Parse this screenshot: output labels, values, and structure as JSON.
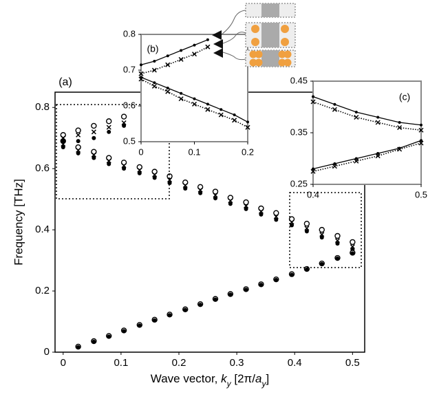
{
  "chart_data": [
    {
      "type": "scatter",
      "panel_label": "(a)",
      "ylabel": "Frequency [THz]",
      "xlabel_parts": [
        "Wave vector, ",
        "k",
        "y",
        "  [2π/",
        "a",
        "y",
        "]"
      ],
      "xlim": [
        -0.014,
        0.521
      ],
      "ylim": [
        0,
        0.85
      ],
      "xticks": [
        0,
        0.1,
        0.2,
        0.3,
        0.4,
        0.5
      ],
      "yticks": [
        0,
        0.2,
        0.4,
        0.6,
        0.8
      ],
      "x": [
        0,
        0.026,
        0.053,
        0.079,
        0.105,
        0.132,
        0.158,
        0.184,
        0.211,
        0.237,
        0.263,
        0.289,
        0.316,
        0.342,
        0.368,
        0.395,
        0.421,
        0.447,
        0.474,
        0.5
      ],
      "series": [
        {
          "marker": "open-circle",
          "color": "#000000",
          "values": [
            0.69,
            0.67,
            0.655,
            0.635,
            0.62,
            0.605,
            0.59,
            0.575,
            0.555,
            0.54,
            0.525,
            0.505,
            0.49,
            0.47,
            0.455,
            0.435,
            0.42,
            0.4,
            0.38,
            0.36
          ]
        },
        {
          "marker": "cross",
          "color": "#000000",
          "values": [
            0.68,
            0.66,
            0.645,
            0.625,
            0.61,
            0.595,
            0.58,
            0.563,
            0.545,
            0.53,
            0.513,
            0.495,
            0.478,
            0.46,
            0.443,
            0.425,
            0.405,
            0.385,
            0.365,
            0.345
          ]
        },
        {
          "marker": "dot",
          "color": "#000000",
          "values": [
            0.67,
            0.65,
            0.635,
            0.615,
            0.6,
            0.585,
            0.57,
            0.553,
            0.535,
            0.52,
            0.503,
            0.485,
            0.468,
            0.45,
            0.433,
            0.415,
            0.395,
            0.375,
            0.355,
            0.335
          ]
        },
        {
          "marker": "open-circle",
          "color": "#000000",
          "values": [
            0.71,
            0.725,
            0.74,
            0.755,
            0.77,
            null,
            null,
            null,
            null,
            null,
            null,
            null,
            null,
            null,
            null,
            null,
            null,
            null,
            null,
            null
          ]
        },
        {
          "marker": "cross",
          "color": "#000000",
          "values": [
            0.7,
            0.71,
            0.72,
            0.735,
            0.75,
            null,
            null,
            null,
            null,
            null,
            null,
            null,
            null,
            null,
            null,
            null,
            null,
            null,
            null,
            null
          ]
        },
        {
          "marker": "dot",
          "color": "#000000",
          "values": [
            0.69,
            0.69,
            0.7,
            0.72,
            0.74,
            null,
            null,
            null,
            null,
            null,
            null,
            null,
            null,
            null,
            null,
            null,
            null,
            null,
            null,
            null
          ]
        },
        {
          "marker": "open-circle",
          "color": "#000000",
          "values": [
            null,
            0.018,
            0.036,
            0.053,
            0.071,
            0.089,
            0.106,
            0.123,
            0.14,
            0.157,
            0.174,
            0.19,
            0.206,
            0.222,
            0.238,
            0.255,
            0.272,
            0.29,
            0.308,
            0.325
          ]
        },
        {
          "marker": "dot",
          "color": "#000000",
          "values": [
            null,
            0.016,
            0.034,
            0.051,
            0.069,
            0.087,
            0.104,
            0.121,
            0.138,
            0.155,
            0.172,
            0.188,
            0.204,
            0.22,
            0.236,
            0.253,
            0.27,
            0.288,
            0.306,
            0.323
          ]
        }
      ]
    },
    {
      "type": "line",
      "panel_label": "(b)",
      "xlim": [
        0,
        0.2
      ],
      "ylim": [
        0.5,
        0.8
      ],
      "xticks": [
        0,
        0.1,
        0.2
      ],
      "yticks": [
        0.5,
        0.6,
        0.7,
        0.8
      ],
      "x": [
        0,
        0.025,
        0.05,
        0.075,
        0.1,
        0.125,
        0.15,
        0.175,
        0.2
      ],
      "series": [
        {
          "style": "solid",
          "marker": "dot",
          "color": "#000000",
          "values": [
            0.715,
            0.725,
            0.74,
            0.755,
            0.77,
            0.785,
            null,
            null,
            null
          ]
        },
        {
          "style": "dotted",
          "marker": "cross",
          "color": "#000000",
          "values": [
            0.69,
            0.7,
            0.715,
            0.73,
            0.745,
            0.765,
            null,
            null,
            null
          ]
        },
        {
          "style": "solid",
          "marker": "dot",
          "color": "#000000",
          "values": [
            0.68,
            0.665,
            0.65,
            0.635,
            0.62,
            0.605,
            0.59,
            0.575,
            0.555
          ]
        },
        {
          "style": "dotted",
          "marker": "cross",
          "color": "#000000",
          "values": [
            0.675,
            0.655,
            0.64,
            0.62,
            0.605,
            0.59,
            0.575,
            0.56,
            0.54
          ]
        }
      ]
    },
    {
      "type": "line",
      "panel_label": "(c)",
      "xlim": [
        0.4,
        0.5
      ],
      "ylim": [
        0.25,
        0.45
      ],
      "xticks": [
        0.4,
        0.5
      ],
      "yticks": [
        0.25,
        0.35,
        0.45
      ],
      "x": [
        0.4,
        0.42,
        0.44,
        0.46,
        0.48,
        0.5
      ],
      "series": [
        {
          "style": "solid",
          "marker": "dot",
          "color": "#000000",
          "values": [
            0.42,
            0.405,
            0.39,
            0.38,
            0.37,
            0.365
          ]
        },
        {
          "style": "dotted",
          "marker": "cross",
          "color": "#000000",
          "values": [
            0.41,
            0.395,
            0.38,
            0.37,
            0.36,
            0.355
          ]
        },
        {
          "style": "solid",
          "marker": "dot",
          "color": "#000000",
          "values": [
            0.28,
            0.29,
            0.3,
            0.31,
            0.32,
            0.335
          ]
        },
        {
          "style": "dotted",
          "marker": "cross",
          "color": "#000000",
          "values": [
            0.275,
            0.285,
            0.295,
            0.305,
            0.318,
            0.33
          ]
        }
      ]
    }
  ]
}
